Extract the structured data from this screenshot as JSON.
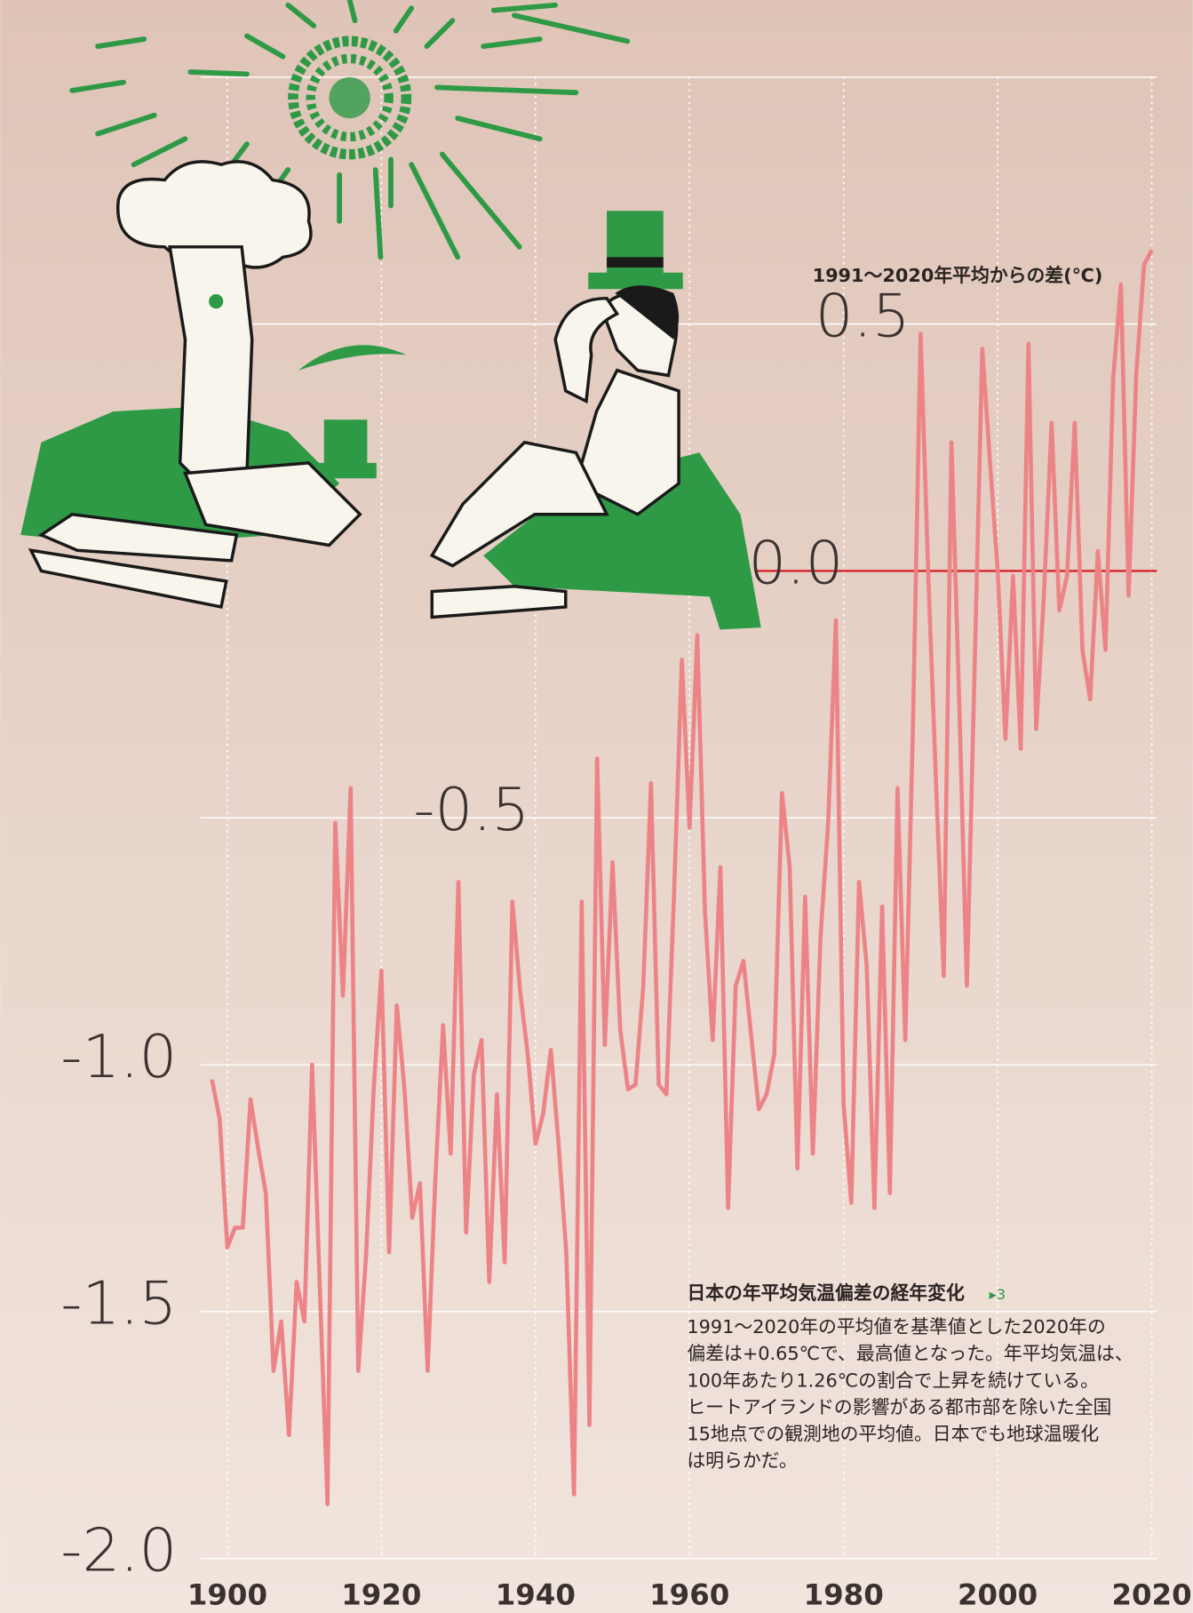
{
  "chart_data": {
    "type": "line",
    "ylabel": "1991〜2020年平均からの差(℃)",
    "note": {
      "title": "日本の年平均気温偏差の経年変化",
      "ref": "▸3",
      "lines": [
        "1991〜2020年の平均値を基準値とした2020年の",
        "偏差は+0.65℃で、最高値となった。年平均気温は、",
        "100年あたり1.26℃の割合で上昇を続けている。",
        "ヒートアイランドの影響がある都市部を除いた全国",
        "15地点での観測地の平均値。日本でも地球温暖化",
        "は明らかだ。"
      ]
    },
    "x": [
      1898,
      1899,
      1900,
      1901,
      1902,
      1903,
      1904,
      1905,
      1906,
      1907,
      1908,
      1909,
      1910,
      1911,
      1912,
      1913,
      1914,
      1915,
      1916,
      1917,
      1918,
      1919,
      1920,
      1921,
      1922,
      1923,
      1924,
      1925,
      1926,
      1927,
      1928,
      1929,
      1930,
      1931,
      1932,
      1933,
      1934,
      1935,
      1936,
      1937,
      1938,
      1939,
      1940,
      1941,
      1942,
      1943,
      1944,
      1945,
      1946,
      1947,
      1948,
      1949,
      1950,
      1951,
      1952,
      1953,
      1954,
      1955,
      1956,
      1957,
      1958,
      1959,
      1960,
      1961,
      1962,
      1963,
      1964,
      1965,
      1966,
      1967,
      1968,
      1969,
      1970,
      1971,
      1972,
      1973,
      1974,
      1975,
      1976,
      1977,
      1978,
      1979,
      1980,
      1981,
      1982,
      1983,
      1984,
      1985,
      1986,
      1987,
      1988,
      1989,
      1990,
      1991,
      1992,
      1993,
      1994,
      1995,
      1996,
      1997,
      1998,
      1999,
      2000,
      2001,
      2002,
      2003,
      2004,
      2005,
      2006,
      2007,
      2008,
      2009,
      2010,
      2011,
      2012,
      2013,
      2014,
      2015,
      2016,
      2017,
      2018,
      2019,
      2020
    ],
    "series": [
      {
        "name": "年平均気温偏差",
        "color": "#ec8487",
        "values": [
          -1.03,
          -1.11,
          -1.37,
          -1.33,
          -1.33,
          -1.07,
          -1.17,
          -1.26,
          -1.62,
          -1.52,
          -1.75,
          -1.44,
          -1.52,
          -1.0,
          -1.45,
          -1.89,
          -0.51,
          -0.86,
          -0.44,
          -1.62,
          -1.39,
          -1.05,
          -0.81,
          -1.38,
          -0.88,
          -1.05,
          -1.31,
          -1.24,
          -1.62,
          -1.23,
          -0.92,
          -1.18,
          -0.63,
          -1.34,
          -1.02,
          -0.95,
          -1.44,
          -1.06,
          -1.4,
          -0.67,
          -0.85,
          -0.98,
          -1.16,
          -1.1,
          -0.97,
          -1.16,
          -1.38,
          -1.87,
          -0.67,
          -1.73,
          -0.38,
          -0.96,
          -0.59,
          -0.93,
          -1.05,
          -1.04,
          -0.84,
          -0.43,
          -1.04,
          -1.06,
          -0.65,
          -0.18,
          -0.52,
          -0.13,
          -0.69,
          -0.95,
          -0.6,
          -1.29,
          -0.84,
          -0.79,
          -0.94,
          -1.09,
          -1.06,
          -0.98,
          -0.45,
          -0.6,
          -1.21,
          -0.66,
          -1.18,
          -0.74,
          -0.51,
          -0.1,
          -1.08,
          -1.28,
          -0.63,
          -0.8,
          -1.29,
          -0.68,
          -1.26,
          -0.44,
          -0.95,
          -0.31,
          0.48,
          -0.01,
          -0.43,
          -0.82,
          0.26,
          -0.26,
          -0.84,
          -0.2,
          0.45,
          0.22,
          0.0,
          -0.34,
          -0.01,
          -0.36,
          0.46,
          -0.32,
          -0.05,
          0.3,
          -0.08,
          -0.01,
          0.3,
          -0.16,
          -0.26,
          0.04,
          -0.16,
          0.39,
          0.58,
          -0.05,
          0.4,
          0.62,
          0.65
        ]
      }
    ],
    "xlim": [
      1898,
      2020
    ],
    "xticks": [
      1900,
      1920,
      1940,
      1960,
      1980,
      2000,
      2020
    ],
    "ylim": [
      -2.0,
      1.0
    ],
    "yticks": [
      {
        "value": -2.0,
        "label": "-2.0"
      },
      {
        "value": -1.5,
        "label": "-1.5"
      },
      {
        "value": -1.0,
        "label": "-1.0"
      },
      {
        "value": -0.5,
        "label": "-0.5"
      },
      {
        "value": 0.0,
        "label": "0.0"
      },
      {
        "value": 0.5,
        "label": "0.5"
      }
    ],
    "grid": true,
    "zero_line_color": "#d6232a"
  }
}
